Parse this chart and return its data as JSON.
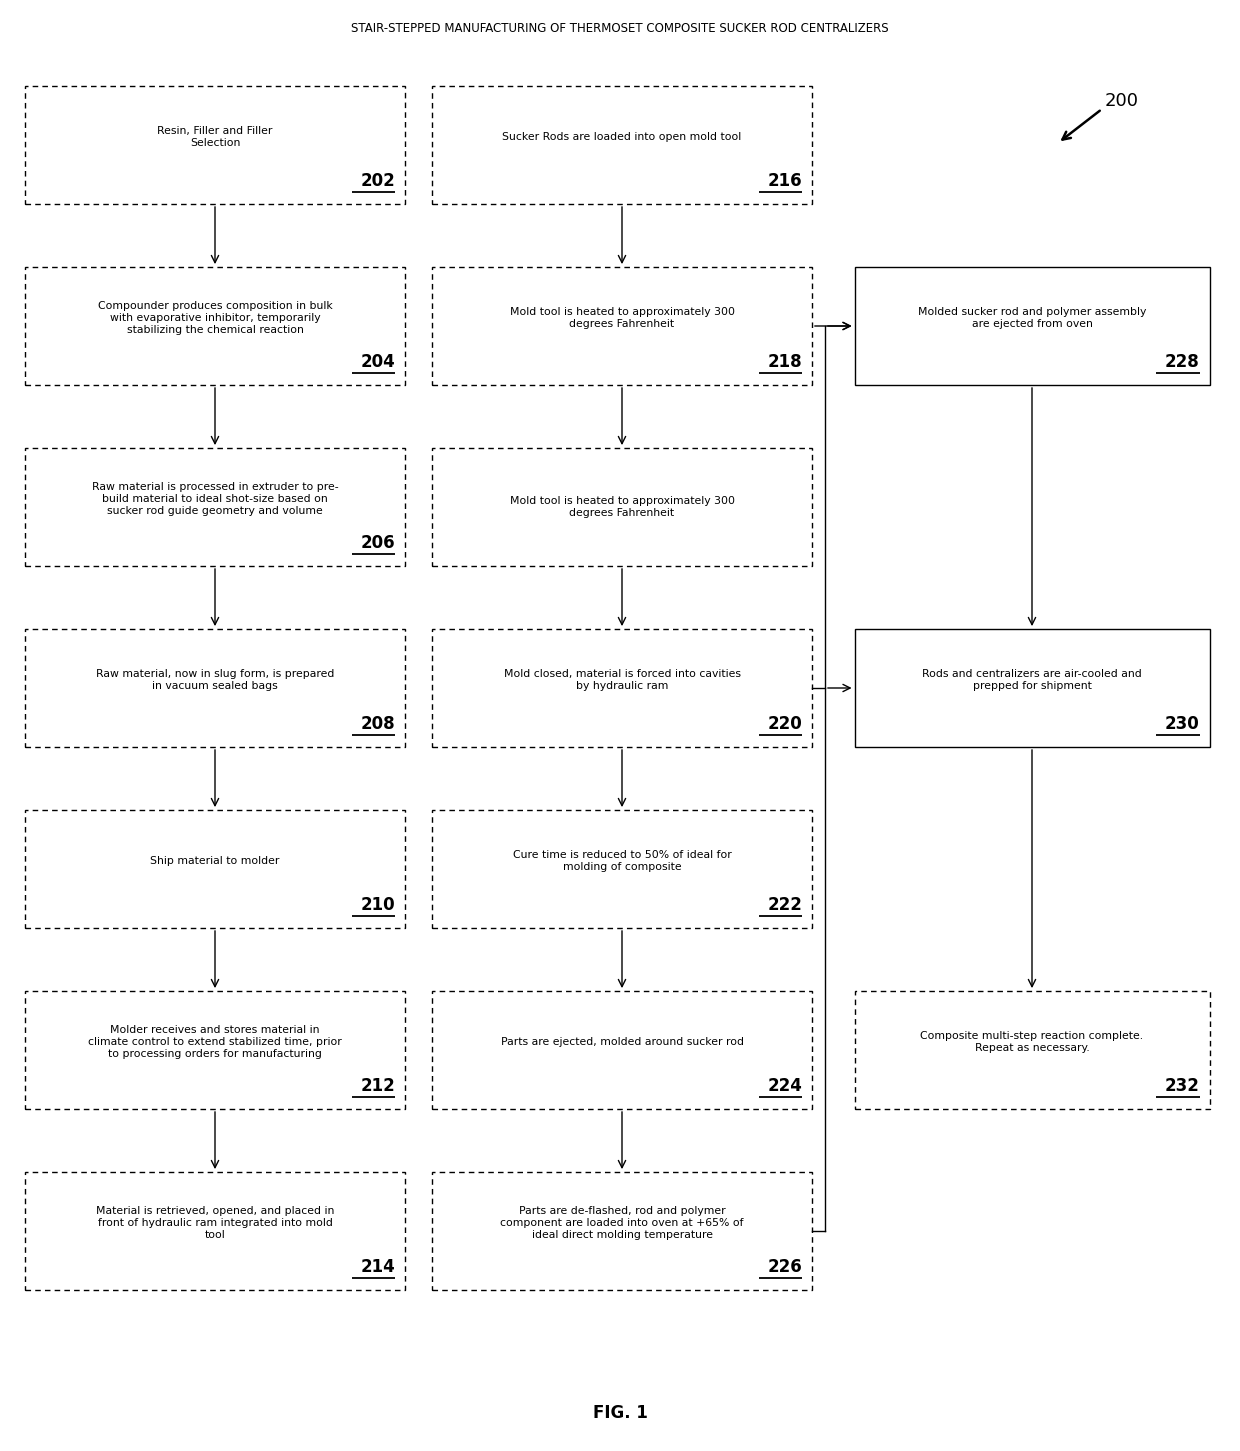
{
  "title": "STAIR-STEPPED MANUFACTURING OF THERMOSET COMPOSITE SUCKER ROD CENTRALIZERS",
  "fig_label": "FIG. 1",
  "ref_number": "200",
  "background_color": "#ffffff",
  "nodes": [
    {
      "id": "202",
      "col": 0,
      "row": 0,
      "text": "Resin, Filler and Filler\nSelection",
      "number": "202",
      "style": "dashed"
    },
    {
      "id": "204",
      "col": 0,
      "row": 1,
      "text": "Compounder produces composition in bulk\nwith evaporative inhibitor, temporarily\nstabilizing the chemical reaction",
      "number": "204",
      "style": "dashed"
    },
    {
      "id": "206",
      "col": 0,
      "row": 2,
      "text": "Raw material is processed in extruder to pre-\nbuild material to ideal shot-size based on\nsucker rod guide geometry and volume",
      "number": "206",
      "style": "dashed"
    },
    {
      "id": "208",
      "col": 0,
      "row": 3,
      "text": "Raw material, now in slug form, is prepared\nin vacuum sealed bags",
      "number": "208",
      "style": "dashed"
    },
    {
      "id": "210",
      "col": 0,
      "row": 4,
      "text": "Ship material to molder",
      "number": "210",
      "style": "dashed"
    },
    {
      "id": "212",
      "col": 0,
      "row": 5,
      "text": "Molder receives and stores material in\nclimate control to extend stabilized time, prior\nto processing orders for manufacturing",
      "number": "212",
      "style": "dashed"
    },
    {
      "id": "214",
      "col": 0,
      "row": 6,
      "text": "Material is retrieved, opened, and placed in\nfront of hydraulic ram integrated into mold\ntool",
      "number": "214",
      "style": "dashed"
    },
    {
      "id": "216",
      "col": 1,
      "row": 0,
      "text": "Sucker Rods are loaded into open mold tool",
      "number": "216",
      "style": "dashed"
    },
    {
      "id": "218",
      "col": 1,
      "row": 1,
      "text": "Mold tool is heated to approximately 300\ndegrees Fahrenheit",
      "number": "218",
      "style": "dashed"
    },
    {
      "id": "219",
      "col": 1,
      "row": 2,
      "text": "Mold tool is heated to approximately 300\ndegrees Fahrenheit",
      "number": "",
      "style": "dashed"
    },
    {
      "id": "220",
      "col": 1,
      "row": 3,
      "text": "Mold closed, material is forced into cavities\nby hydraulic ram",
      "number": "220",
      "style": "dashed"
    },
    {
      "id": "222",
      "col": 1,
      "row": 4,
      "text": "Cure time is reduced to 50% of ideal for\nmolding of composite",
      "number": "222",
      "style": "dashed"
    },
    {
      "id": "224",
      "col": 1,
      "row": 5,
      "text": "Parts are ejected, molded around sucker rod",
      "number": "224",
      "style": "dashed"
    },
    {
      "id": "226",
      "col": 1,
      "row": 6,
      "text": "Parts are de-flashed, rod and polymer\ncomponent are loaded into oven at +65% of\nideal direct molding temperature",
      "number": "226",
      "style": "dashed"
    },
    {
      "id": "228",
      "col": 2,
      "row": 1,
      "text": "Molded sucker rod and polymer assembly\nare ejected from oven",
      "number": "228",
      "style": "solid"
    },
    {
      "id": "230",
      "col": 2,
      "row": 3,
      "text": "Rods and centralizers are air-cooled and\nprepped for shipment",
      "number": "230",
      "style": "solid"
    },
    {
      "id": "232",
      "col": 2,
      "row": 5,
      "text": "Composite multi-step reaction complete.\nRepeat as necessary.",
      "number": "232",
      "style": "dashed"
    }
  ]
}
